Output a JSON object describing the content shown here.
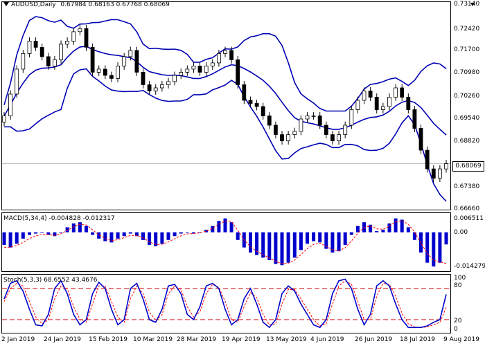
{
  "header": {
    "symbol": "AUDUSD,Daily",
    "ohlc": "0.67984 0.68163 0.67768 0.68069"
  },
  "price_panel": {
    "y_ticks": [
      "0.73140",
      "0.72420",
      "0.71700",
      "0.70980",
      "0.70260",
      "0.69540",
      "0.68820",
      "0.68069",
      "0.67380",
      "0.66660"
    ],
    "current_price": "0.68069"
  },
  "macd_panel": {
    "label": "MACD(5,34,4) -0.004828 -0.012317",
    "y_ticks": [
      "0.006511",
      "0.00",
      "-0.014279"
    ]
  },
  "stoch_panel": {
    "label": "Stoch(5,3,3) 68.6552 43.4676",
    "y_ticks": [
      "100",
      "80",
      "20",
      "0"
    ]
  },
  "x_axis": {
    "dates": [
      "2 Jan 2019",
      "24 Jan 2019",
      "15 Feb 2019",
      "10 Mar 2019",
      "28 Mar 2019",
      "19 Apr 2019",
      "13 May 2019",
      "4 Jun 2019",
      "26 Jun 2019",
      "18 Jul 2019",
      "9 Aug 2019"
    ]
  },
  "colors": {
    "bollinger": "#0000b3",
    "candles": "#000000",
    "macd_hist": "#0000cc",
    "signal": "#ff0000",
    "stoch_main": "#0000cc",
    "levels": "#cc0000"
  },
  "chart_data": [
    {
      "type": "line",
      "title": "AUDUSD,Daily",
      "series": [
        {
          "name": "Close",
          "values": [
            0.696,
            0.703,
            0.711,
            0.716,
            0.72,
            0.718,
            0.715,
            0.712,
            0.714,
            0.719,
            0.72,
            0.723,
            0.724,
            0.718,
            0.71,
            0.711,
            0.709,
            0.708,
            0.712,
            0.715,
            0.717,
            0.71,
            0.706,
            0.704,
            0.705,
            0.706,
            0.707,
            0.709,
            0.71,
            0.711,
            0.712,
            0.71,
            0.712,
            0.713,
            0.716,
            0.717,
            0.714,
            0.706,
            0.701,
            0.7,
            0.699,
            0.696,
            0.693,
            0.69,
            0.688,
            0.69,
            0.691,
            0.695,
            0.696,
            0.696,
            0.693,
            0.69,
            0.688,
            0.69,
            0.693,
            0.698,
            0.701,
            0.704,
            0.702,
            0.698,
            0.699,
            0.702,
            0.705,
            0.702,
            0.698,
            0.692,
            0.685,
            0.679,
            0.676,
            0.679,
            0.6807
          ]
        }
      ],
      "ylim": [
        0.6666,
        0.7314
      ]
    },
    {
      "type": "bar",
      "title": "MACD(5,34,4) -0.004828 -0.012317",
      "series": [
        {
          "name": "MACD",
          "values": [
            -0.005,
            -0.006,
            -0.0045,
            -0.0025,
            -0.001,
            -0.0005,
            -0.0002,
            -0.001,
            -0.0015,
            0.0,
            0.002,
            0.0035,
            0.004,
            0.0025,
            -0.001,
            -0.0025,
            -0.0035,
            -0.004,
            -0.0025,
            -0.0015,
            -0.0005,
            -0.0015,
            -0.003,
            -0.005,
            -0.0055,
            -0.0045,
            -0.003,
            -0.0015,
            -0.0005,
            0.0,
            -0.0005,
            0.0,
            0.001,
            0.0025,
            0.0045,
            0.0055,
            0.004,
            -0.003,
            -0.006,
            -0.008,
            -0.009,
            -0.01,
            -0.011,
            -0.0125,
            -0.013,
            -0.012,
            -0.01,
            -0.007,
            -0.0045,
            -0.0035,
            -0.004,
            -0.0065,
            -0.008,
            -0.0075,
            -0.005,
            -0.001,
            0.0025,
            0.004,
            0.003,
            0.0005,
            0.001,
            0.0035,
            0.0055,
            0.005,
            0.002,
            -0.003,
            -0.008,
            -0.012,
            -0.0135,
            -0.012,
            -0.0048
          ]
        },
        {
          "name": "Signal",
          "values": [
            -0.006,
            -0.0058,
            -0.0052,
            -0.004,
            -0.0025,
            -0.0014,
            -0.0008,
            -0.0009,
            -0.0012,
            -0.0006,
            0.0008,
            0.0022,
            0.0032,
            0.0029,
            0.001,
            -0.001,
            -0.0024,
            -0.0033,
            -0.0029,
            -0.0021,
            -0.0012,
            -0.0013,
            -0.0022,
            -0.0038,
            -0.0048,
            -0.0047,
            -0.0038,
            -0.0025,
            -0.0014,
            -0.0006,
            -0.0005,
            -0.0002,
            0.0005,
            0.0016,
            0.0032,
            0.0045,
            0.0043,
            0.0008,
            -0.003,
            -0.0057,
            -0.0075,
            -0.0089,
            -0.0101,
            -0.0115,
            -0.0124,
            -0.0122,
            -0.011,
            -0.0088,
            -0.0064,
            -0.0048,
            -0.0043,
            -0.0055,
            -0.0069,
            -0.0073,
            -0.0061,
            -0.0034,
            -0.0004,
            0.0019,
            0.0025,
            0.0014,
            0.0012,
            0.0025,
            0.0041,
            0.0046,
            0.0032,
            0.0001,
            -0.0042,
            -0.0083,
            -0.0111,
            -0.0117,
            -0.0123
          ]
        }
      ],
      "ylim": [
        -0.014279,
        0.006511
      ]
    },
    {
      "type": "line",
      "title": "Stoch(5,3,3) 68.6552 43.4676",
      "series": [
        {
          "name": "%K",
          "values": [
            60,
            90,
            95,
            75,
            40,
            10,
            8,
            30,
            80,
            95,
            70,
            30,
            10,
            20,
            70,
            92,
            80,
            40,
            10,
            20,
            80,
            90,
            60,
            20,
            15,
            40,
            85,
            88,
            70,
            30,
            20,
            45,
            85,
            90,
            80,
            40,
            10,
            20,
            60,
            80,
            50,
            15,
            5,
            20,
            70,
            85,
            75,
            50,
            30,
            10,
            5,
            20,
            70,
            95,
            98,
            80,
            40,
            10,
            30,
            85,
            95,
            85,
            50,
            20,
            5,
            5,
            5,
            8,
            15,
            20,
            68.66
          ]
        },
        {
          "name": "%D",
          "values": [
            55,
            80,
            90,
            85,
            55,
            25,
            12,
            20,
            60,
            85,
            80,
            45,
            20,
            15,
            50,
            85,
            85,
            55,
            25,
            15,
            60,
            85,
            70,
            35,
            18,
            30,
            70,
            85,
            78,
            45,
            25,
            35,
            70,
            88,
            82,
            55,
            20,
            15,
            45,
            72,
            62,
            30,
            10,
            12,
            50,
            78,
            78,
            60,
            40,
            20,
            8,
            12,
            50,
            85,
            95,
            88,
            55,
            20,
            20,
            65,
            90,
            88,
            65,
            32,
            12,
            6,
            5,
            6,
            10,
            15,
            43.47
          ]
        }
      ],
      "ylim": [
        0,
        100
      ]
    }
  ]
}
